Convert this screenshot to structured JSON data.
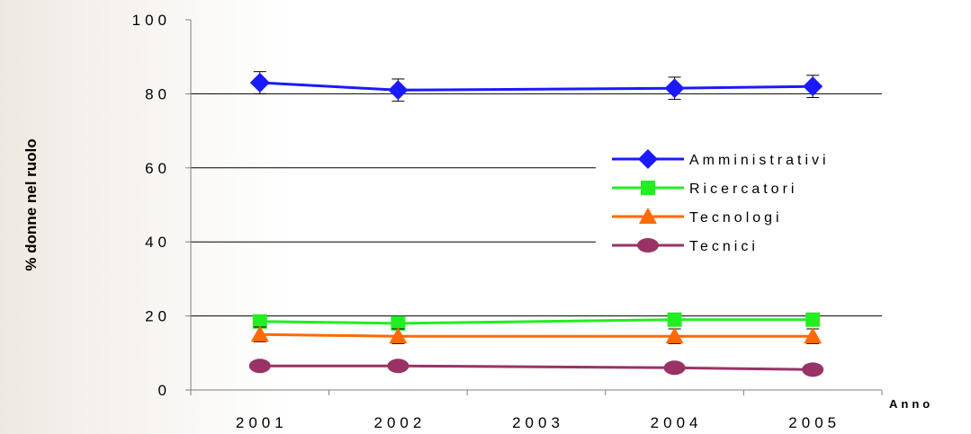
{
  "chart_data": {
    "type": "line",
    "title": "",
    "xlabel": "Anno",
    "ylabel": "% donne nel ruolo",
    "categories": [
      "2001",
      "2002",
      "2003",
      "2004",
      "2005"
    ],
    "ylim": [
      0,
      100
    ],
    "yticks": [
      "0",
      "20",
      "40",
      "60",
      "80",
      "100"
    ],
    "grid": "horizontal",
    "legend_position": "right",
    "series": [
      {
        "name": "Amministrativi",
        "color": "#1a1aff",
        "marker": "diamond",
        "points": [
          {
            "x": "2001",
            "y": 83
          },
          {
            "x": "2002",
            "y": 81
          },
          {
            "x": "2004",
            "y": 81.5
          },
          {
            "x": "2005",
            "y": 82
          }
        ],
        "error": 3
      },
      {
        "name": "Ricercatori",
        "color": "#22ee22",
        "marker": "square",
        "points": [
          {
            "x": "2001",
            "y": 18.5
          },
          {
            "x": "2002",
            "y": 18
          },
          {
            "x": "2004",
            "y": 19
          },
          {
            "x": "2005",
            "y": 19
          }
        ],
        "error": 1.5
      },
      {
        "name": "Tecnologi",
        "color": "#ff6a00",
        "marker": "triangle",
        "points": [
          {
            "x": "2001",
            "y": 15
          },
          {
            "x": "2002",
            "y": 14.5
          },
          {
            "x": "2004",
            "y": 14.5
          },
          {
            "x": "2005",
            "y": 14.5
          }
        ],
        "error": 2
      },
      {
        "name": "Tecnici",
        "color": "#993366",
        "marker": "circle",
        "points": [
          {
            "x": "2001",
            "y": 6.5
          },
          {
            "x": "2002",
            "y": 6.5
          },
          {
            "x": "2004",
            "y": 6
          },
          {
            "x": "2005",
            "y": 5.5
          }
        ],
        "error": 0.8
      }
    ]
  }
}
